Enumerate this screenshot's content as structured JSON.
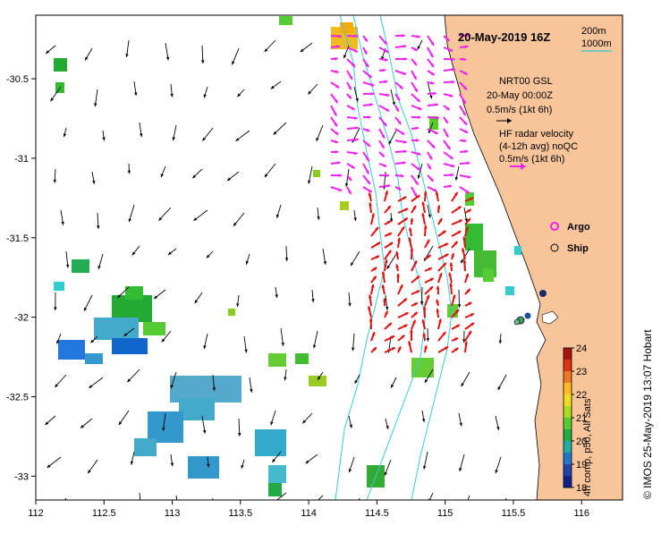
{
  "map": {
    "title": "20-May-2019 16Z",
    "lon_range": [
      112,
      116.3
    ],
    "lat_range": [
      -33.15,
      -30.1
    ]
  },
  "axes": {
    "x_ticks": [
      "112",
      "112.5",
      "113",
      "113.5",
      "114",
      "114.5",
      "115",
      "115.5",
      "116"
    ],
    "x_values": [
      112,
      112.5,
      113,
      113.5,
      114,
      114.5,
      115,
      115.5,
      116
    ],
    "y_ticks": [
      "-30.5",
      "-31",
      "-31.5",
      "-32",
      "-32.5",
      "-33"
    ],
    "y_values": [
      -30.5,
      -31,
      -31.5,
      -32,
      -32.5,
      -33
    ]
  },
  "bathymetry_legend": {
    "line1": "200m",
    "line2": "1000m",
    "color": "#33ccdd"
  },
  "model_legend": {
    "line1": "NRT00 GSL",
    "line2": "20-May 00:00Z",
    "line3": "0.5m/s (1kt 6h)",
    "arrow_color": "#000000"
  },
  "radar_legend": {
    "line1": "HF radar velocity",
    "line2": "(4-12h avg) noQC",
    "line3": "0.5m/s (1kt 6h)",
    "arrow_color": "#ee22ee"
  },
  "markers": {
    "argo_label": "Argo",
    "ship_label": "Ship",
    "argo_color": "#ee22ee"
  },
  "colorbar": {
    "title": "4h comp, p50, All Sats",
    "ticks": [
      "24",
      "23",
      "22",
      "21",
      "20",
      "19",
      "18"
    ],
    "min": 18,
    "max": 24
  },
  "credit": "© IMOS 25-May-2019 13:07 Hobart",
  "colors": {
    "land": "#f8c59a",
    "radar_north": "#ee22ee",
    "radar_south": "#dd1111",
    "model_arrows": "#000000"
  }
}
